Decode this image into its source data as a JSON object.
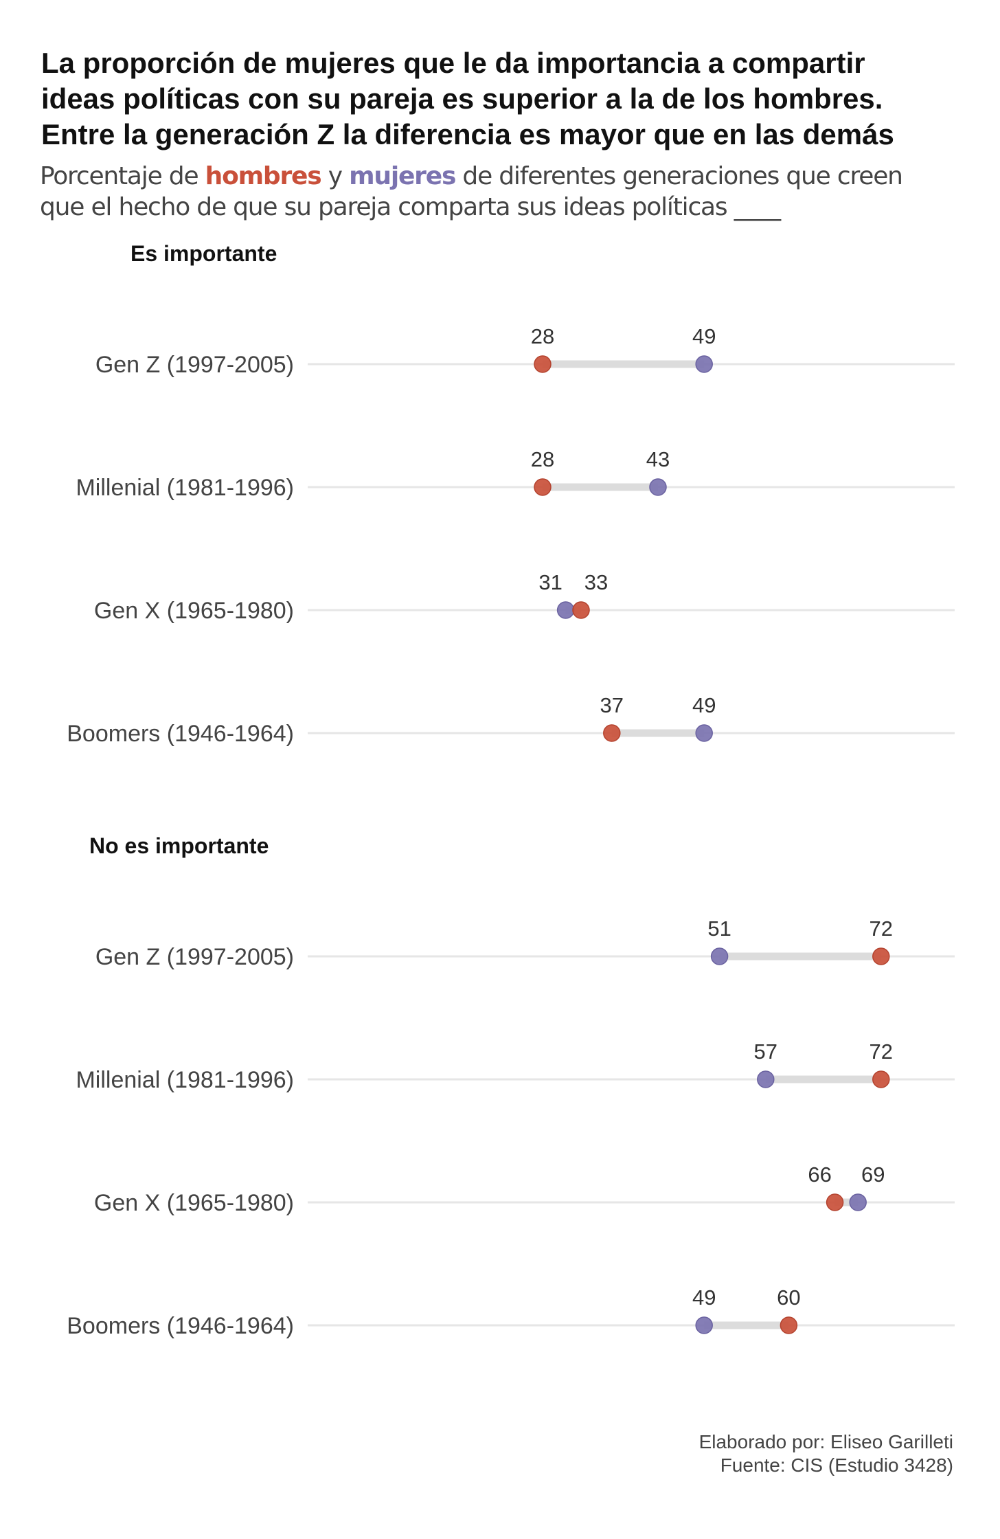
{
  "title_lines": [
    "La proporción de mujeres que le da importancia a compartir",
    "ideas políticas con su pareja es superior a la de los hombres.",
    "Entre la generación Z la diferencia es mayor que en las demás"
  ],
  "subtitle": {
    "pre": "Porcentaje de ",
    "men": "hombres",
    "mid": " y ",
    "women": "mujeres",
    "post": " de diferentes generaciones que creen",
    "line2": "que el hecho de que su pareja comparta sus ideas políticas ____"
  },
  "colors": {
    "men": "#c9503a",
    "women": "#7b73b0",
    "connector": "#dcdcdc",
    "gridline": "#e6e6e6"
  },
  "chart_data": {
    "type": "dumbbell",
    "series": [
      {
        "name": "hombres",
        "color": "#c9503a"
      },
      {
        "name": "mujeres",
        "color": "#7b73b0"
      }
    ],
    "panels": [
      {
        "label": "Es importante",
        "rows": [
          {
            "category": "Gen Z (1997-2005)",
            "hombres": 28,
            "mujeres": 49
          },
          {
            "category": "Millenial (1981-1996)",
            "hombres": 28,
            "mujeres": 43
          },
          {
            "category": "Gen X (1965-1980)",
            "hombres": 33,
            "mujeres": 31
          },
          {
            "category": "Boomers (1946-1964)",
            "hombres": 37,
            "mujeres": 49
          }
        ]
      },
      {
        "label": "No es importante",
        "rows": [
          {
            "category": "Gen Z (1997-2005)",
            "hombres": 72,
            "mujeres": 51
          },
          {
            "category": "Millenial (1981-1996)",
            "hombres": 72,
            "mujeres": 57
          },
          {
            "category": "Gen X (1965-1980)",
            "hombres": 66,
            "mujeres": 69
          },
          {
            "category": "Boomers (1946-1964)",
            "hombres": 60,
            "mujeres": 49
          }
        ]
      }
    ]
  },
  "footer": {
    "line1": "Elaborado por: Eliseo Garilleti",
    "line2": "Fuente: CIS (Estudio 3428)"
  }
}
